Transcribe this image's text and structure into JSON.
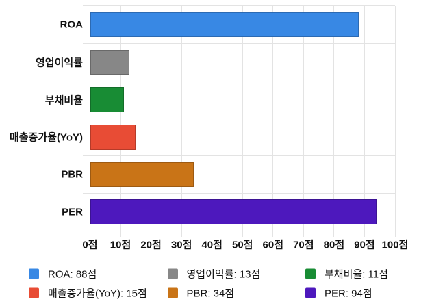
{
  "chart_data": {
    "type": "bar",
    "orientation": "horizontal",
    "categories": [
      "ROA",
      "영업이익률",
      "부채비율",
      "매출증가율(YoY)",
      "PBR",
      "PER"
    ],
    "values": [
      88,
      13,
      11,
      15,
      34,
      94
    ],
    "value_unit": "점",
    "colors": [
      "#3888e4",
      "#878787",
      "#188c34",
      "#e84c35",
      "#c97417",
      "#4d18bd"
    ],
    "xlabel": "",
    "ylabel": "",
    "xlim": [
      0,
      100
    ],
    "x_tick_step": 10,
    "x_tick_labels": [
      "0점",
      "10점",
      "20점",
      "30점",
      "40점",
      "50점",
      "60점",
      "70점",
      "80점",
      "90점",
      "100점"
    ],
    "grid": true,
    "axis_line_color": "#7b7b7b",
    "grid_color": "#e3e3e3",
    "legend_position": "bottom",
    "legend_labels": [
      "ROA: 88점",
      "영업이익률: 13점",
      "부채비율: 11점",
      "매출증가율(YoY): 15점",
      "PBR: 34점",
      "PER: 94점"
    ]
  }
}
